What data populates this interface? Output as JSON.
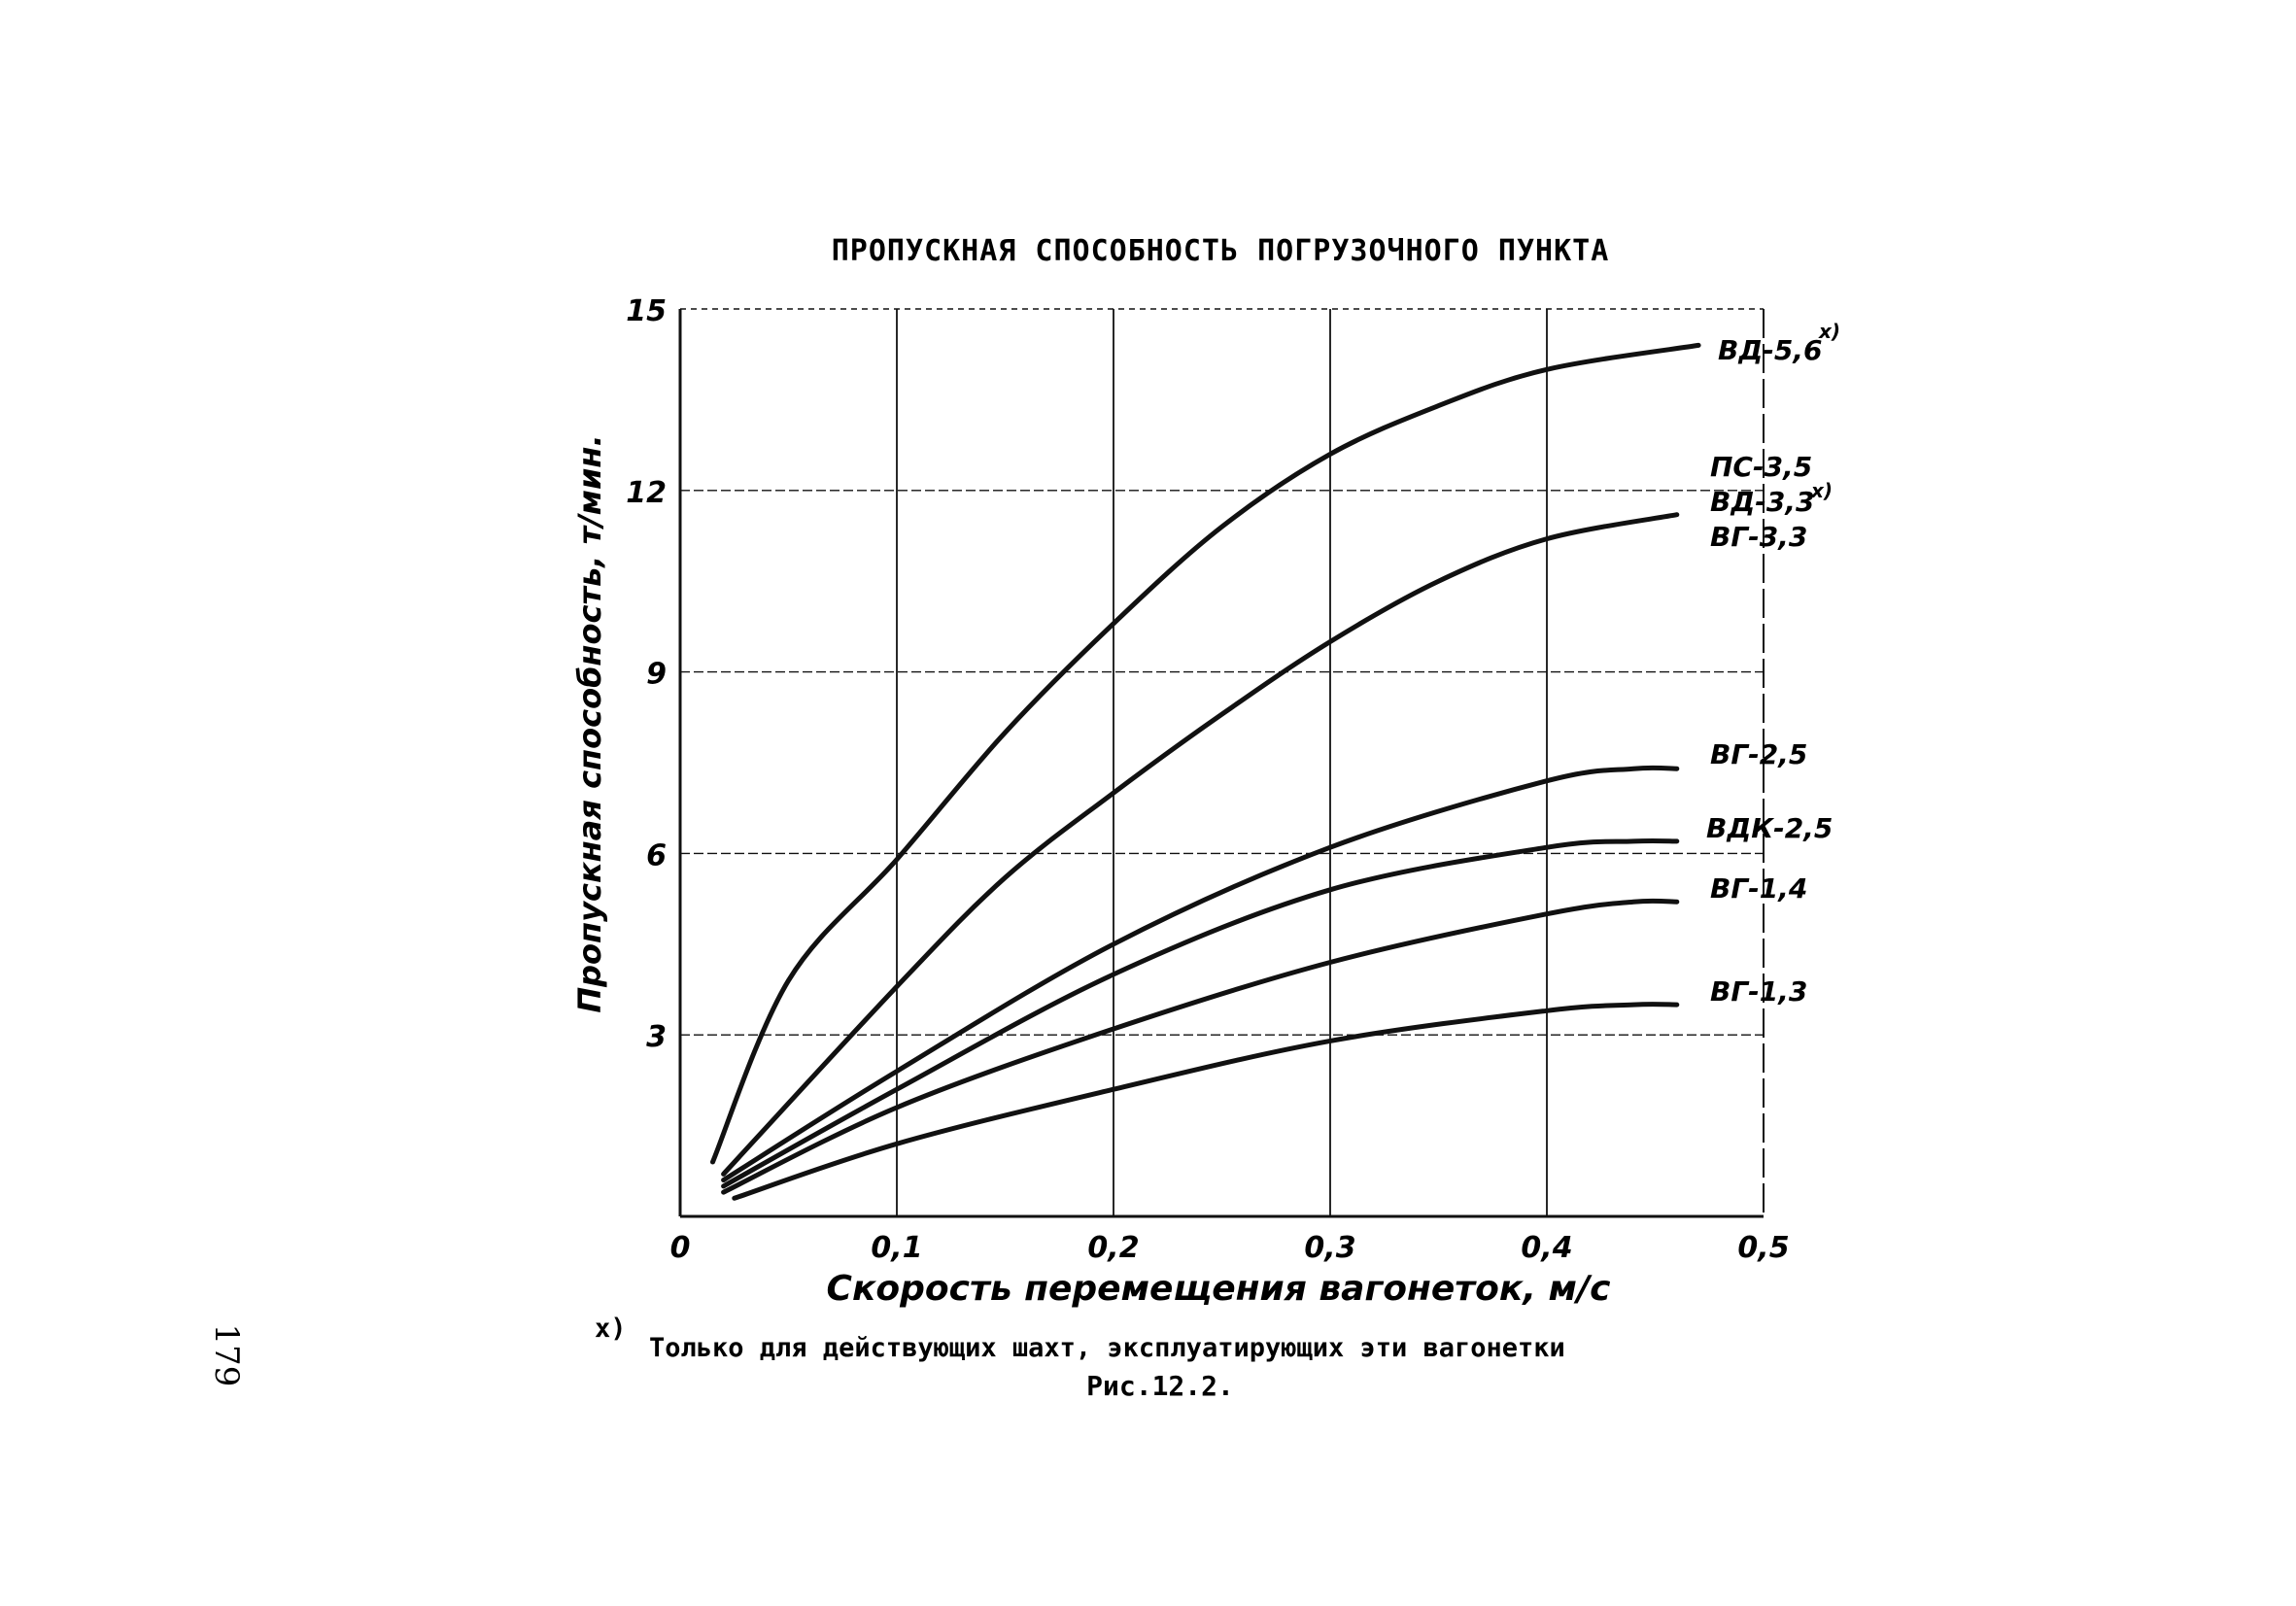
{
  "chart_data": {
    "type": "line",
    "title": "ПРОПУСКНАЯ СПОСОБНОСТЬ ПОГРУЗОЧНОГО ПУНКТА",
    "xlabel": "Скорость перемещения вагонеток, м/с",
    "ylabel": "Пропускная способность, т/мин.",
    "xlim": [
      0,
      0.5
    ],
    "ylim": [
      0,
      15
    ],
    "xticks": [
      "0",
      "0,1",
      "0,2",
      "0,3",
      "0,4",
      "0,5"
    ],
    "yticks": [
      "3",
      "6",
      "9",
      "12",
      "15"
    ],
    "grid": true,
    "series": [
      {
        "name": "ВД-5,6",
        "footnote": "x)",
        "x": [
          0.015,
          0.05,
          0.1,
          0.15,
          0.2,
          0.25,
          0.3,
          0.35,
          0.4,
          0.47
        ],
        "y": [
          0.9,
          3.9,
          5.9,
          8.0,
          9.8,
          11.4,
          12.6,
          13.4,
          14.0,
          14.4
        ]
      },
      {
        "name": "ПС-3,5 / ВД-3,3 / ВГ-3,3",
        "footnote": "x)",
        "x": [
          0.02,
          0.1,
          0.15,
          0.2,
          0.25,
          0.3,
          0.35,
          0.4,
          0.46
        ],
        "y": [
          0.7,
          3.8,
          5.6,
          7.0,
          8.3,
          9.5,
          10.5,
          11.2,
          11.6
        ]
      },
      {
        "name": "ВГ-2,5",
        "x": [
          0.02,
          0.1,
          0.2,
          0.3,
          0.4,
          0.44,
          0.46
        ],
        "y": [
          0.6,
          2.4,
          4.5,
          6.1,
          7.2,
          7.4,
          7.4
        ]
      },
      {
        "name": "ВДК-2,5",
        "x": [
          0.02,
          0.1,
          0.2,
          0.3,
          0.4,
          0.44,
          0.46
        ],
        "y": [
          0.5,
          2.1,
          4.0,
          5.4,
          6.1,
          6.2,
          6.2
        ]
      },
      {
        "name": "ВГ-1,4",
        "x": [
          0.02,
          0.1,
          0.2,
          0.3,
          0.4,
          0.44,
          0.46
        ],
        "y": [
          0.4,
          1.8,
          3.1,
          4.2,
          5.0,
          5.2,
          5.2
        ]
      },
      {
        "name": "ВГ-1,3",
        "x": [
          0.025,
          0.1,
          0.2,
          0.3,
          0.4,
          0.44,
          0.46
        ],
        "y": [
          0.3,
          1.2,
          2.1,
          2.9,
          3.4,
          3.5,
          3.5
        ]
      }
    ],
    "series_labels": [
      "ВД-5,6",
      "ПС-3,5",
      "ВД-3,3",
      "ВГ-3,3",
      "ВГ-2,5",
      "ВДК-2,5",
      "ВГ-1,4",
      "ВГ-1,3"
    ],
    "footnote_mark": "x)"
  },
  "footnote": {
    "mark": "x)",
    "text": "Только для действующих шахт, эксплуатирующих эти вагонетки"
  },
  "figure_caption": "Рис.12.2.",
  "page_number": "179",
  "colors": {
    "ink": "#111111",
    "paper": "#ffffff"
  }
}
